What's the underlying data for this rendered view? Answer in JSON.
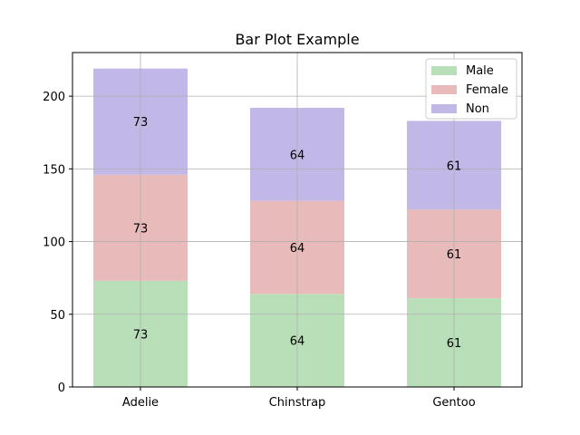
{
  "chart_data": {
    "type": "bar",
    "stacked": true,
    "title": "Bar Plot Example",
    "xlabel": "",
    "ylabel": "",
    "categories": [
      "Adelie",
      "Chinstrap",
      "Gentoo"
    ],
    "series": [
      {
        "name": "Male",
        "values": [
          73,
          64,
          61
        ],
        "color": "#b8dfb8"
      },
      {
        "name": "Female",
        "values": [
          73,
          64,
          61
        ],
        "color": "#e8baba"
      },
      {
        "name": "Non",
        "values": [
          73,
          64,
          61
        ],
        "color": "#c2b8e8"
      }
    ],
    "top_totals": [
      219,
      192,
      183
    ],
    "ylim": [
      0,
      230
    ],
    "yticks": [
      0,
      50,
      100,
      150,
      200
    ],
    "grid": true,
    "legend_position": "top-right"
  }
}
